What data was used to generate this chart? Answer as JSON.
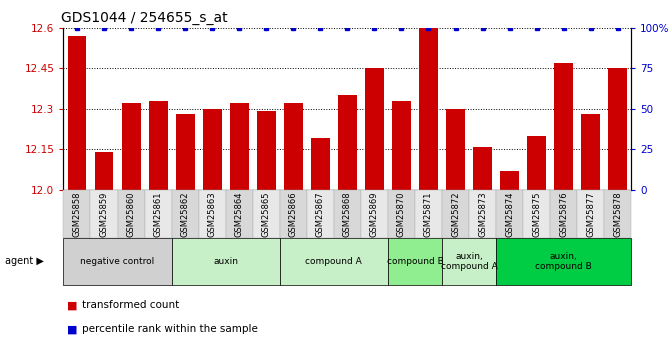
{
  "title": "GDS1044 / 254655_s_at",
  "categories": [
    "GSM25858",
    "GSM25859",
    "GSM25860",
    "GSM25861",
    "GSM25862",
    "GSM25863",
    "GSM25864",
    "GSM25865",
    "GSM25866",
    "GSM25867",
    "GSM25868",
    "GSM25869",
    "GSM25870",
    "GSM25871",
    "GSM25872",
    "GSM25873",
    "GSM25874",
    "GSM25875",
    "GSM25876",
    "GSM25877",
    "GSM25878"
  ],
  "bar_values": [
    12.57,
    12.14,
    12.32,
    12.33,
    12.28,
    12.3,
    12.32,
    12.29,
    12.32,
    12.19,
    12.35,
    12.45,
    12.33,
    12.6,
    12.3,
    12.16,
    12.07,
    12.2,
    12.47,
    12.28,
    12.45
  ],
  "percentile_values": [
    100,
    100,
    100,
    100,
    100,
    100,
    100,
    100,
    100,
    100,
    100,
    100,
    100,
    100,
    100,
    100,
    100,
    100,
    100,
    100,
    100
  ],
  "ylim_left": [
    12.0,
    12.6
  ],
  "ylim_right": [
    0,
    100
  ],
  "yticks_left": [
    12.0,
    12.15,
    12.3,
    12.45,
    12.6
  ],
  "yticks_right": [
    0,
    25,
    50,
    75,
    100
  ],
  "bar_color": "#cc0000",
  "dot_color": "#0000cc",
  "background_color": "#ffffff",
  "grid_color": "#000000",
  "agent_groups": [
    {
      "label": "negative control",
      "start": 0,
      "end": 3,
      "color": "#d0d0d0"
    },
    {
      "label": "auxin",
      "start": 4,
      "end": 7,
      "color": "#c8f0c8"
    },
    {
      "label": "compound A",
      "start": 8,
      "end": 11,
      "color": "#c8f0c8"
    },
    {
      "label": "compound B",
      "start": 12,
      "end": 13,
      "color": "#90ee90"
    },
    {
      "label": "auxin,\ncompound A",
      "start": 14,
      "end": 15,
      "color": "#c8f0c8"
    },
    {
      "label": "auxin,\ncompound B",
      "start": 16,
      "end": 20,
      "color": "#00cc44"
    }
  ],
  "title_fontsize": 10,
  "tick_fontsize": 7.5,
  "bar_width": 0.7,
  "cell_colors": [
    "#d8d8d8",
    "#e8e8e8"
  ]
}
